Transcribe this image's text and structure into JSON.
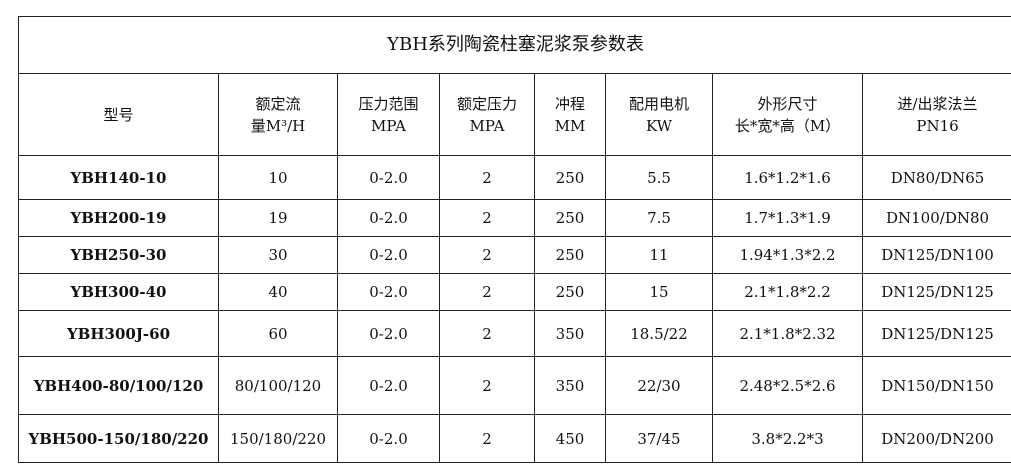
{
  "title": "YBH系列陶瓷柱塞泥浆泵参数表",
  "headers": [
    [
      "型号"
    ],
    [
      "额定流",
      "量M³/H"
    ],
    [
      "压力范围",
      "MPA"
    ],
    [
      "额定压力",
      "MPA"
    ],
    [
      "冲程",
      "MM"
    ],
    [
      "配用电机",
      "KW"
    ],
    [
      "外形尺寸",
      "长*宽*高（M）"
    ],
    [
      "进/出浆法兰",
      "PN16"
    ]
  ],
  "rows": [
    [
      "YBH140-10",
      "10",
      "0-2.0",
      "2",
      "250",
      "5.5",
      "1.6*1.2*1.6",
      "DN80/DN65"
    ],
    [
      "YBH200-19",
      "19",
      "0-2.0",
      "2",
      "250",
      "7.5",
      "1.7*1.3*1.9",
      "DN100/DN80"
    ],
    [
      "YBH250-30",
      "30",
      "0-2.0",
      "2",
      "250",
      "11",
      "1.94*1.3*2.2",
      "DN125/DN100"
    ],
    [
      "YBH300-40",
      "40",
      "0-2.0",
      "2",
      "250",
      "15",
      "2.1*1.8*2.2",
      "DN125/DN125"
    ],
    [
      "YBH300J-60",
      "60",
      "0-2.0",
      "2",
      "350",
      "18.5/22",
      "2.1*1.8*2.32",
      "DN125/DN125"
    ],
    [
      "YBH400-80/100/120",
      "80/100/120",
      "0-2.0",
      "2",
      "350",
      "22/30",
      "2.48*2.5*2.6",
      "DN150/DN150"
    ],
    [
      "YBH500-150/180/220",
      "150/180/220",
      "0-2.0",
      "2",
      "450",
      "37/45",
      "3.8*2.2*3",
      "DN200/DN200"
    ]
  ]
}
